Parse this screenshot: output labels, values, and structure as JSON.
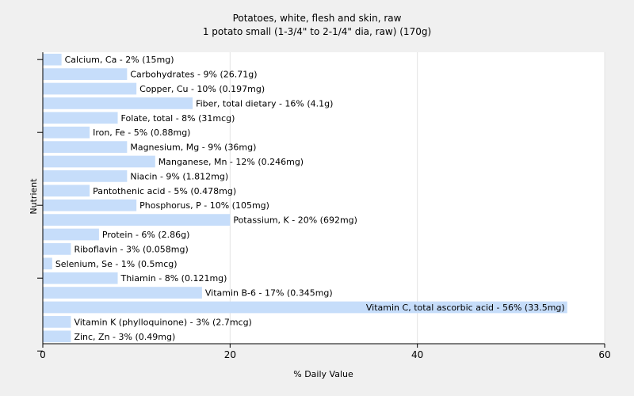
{
  "chart_data": {
    "type": "bar",
    "orientation": "horizontal",
    "title": "Potatoes, white, flesh and skin, raw",
    "subtitle": "1 potato small (1-3/4\" to 2-1/4\" dia, raw) (170g)",
    "xlabel": "% Daily Value",
    "ylabel": "Nutrient",
    "xlim": [
      0,
      60
    ],
    "xticks": [
      0,
      20,
      40,
      60
    ],
    "grid": true,
    "bar_color": "#c6ddfa",
    "categories": [
      "Calcium, Ca",
      "Carbohydrates",
      "Copper, Cu",
      "Fiber, total dietary",
      "Folate, total",
      "Iron, Fe",
      "Magnesium, Mg",
      "Manganese, Mn",
      "Niacin",
      "Pantothenic acid",
      "Phosphorus, P",
      "Potassium, K",
      "Protein",
      "Riboflavin",
      "Selenium, Se",
      "Thiamin",
      "Vitamin B-6",
      "Vitamin C, total ascorbic acid",
      "Vitamin K (phylloquinone)",
      "Zinc, Zn"
    ],
    "values": [
      2,
      9,
      10,
      16,
      8,
      5,
      9,
      12,
      9,
      5,
      10,
      20,
      6,
      3,
      1,
      8,
      17,
      56,
      3,
      3
    ],
    "labels": [
      "Calcium, Ca - 2% (15mg)",
      "Carbohydrates - 9% (26.71g)",
      "Copper, Cu - 10% (0.197mg)",
      "Fiber, total dietary - 16% (4.1g)",
      "Folate, total - 8% (31mcg)",
      "Iron, Fe - 5% (0.88mg)",
      "Magnesium, Mg - 9% (36mg)",
      "Manganese, Mn - 12% (0.246mg)",
      "Niacin - 9% (1.812mg)",
      "Pantothenic acid - 5% (0.478mg)",
      "Phosphorus, P - 10% (105mg)",
      "Potassium, K - 20% (692mg)",
      "Protein - 6% (2.86g)",
      "Riboflavin - 3% (0.058mg)",
      "Selenium, Se - 1% (0.5mcg)",
      "Thiamin - 8% (0.121mg)",
      "Vitamin B-6 - 17% (0.345mg)",
      "Vitamin C, total ascorbic acid - 56% (33.5mg)",
      "Vitamin K (phylloquinone) - 3% (2.7mcg)",
      "Zinc, Zn - 3% (0.49mg)"
    ]
  }
}
